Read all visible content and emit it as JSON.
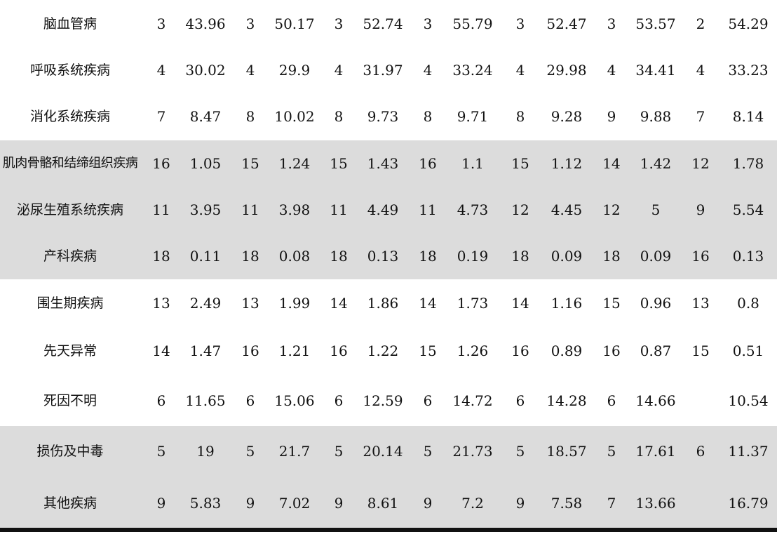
{
  "table": {
    "rows": [
      {
        "name": "脑血管病",
        "shaded": false,
        "cells": [
          "3",
          "43.96",
          "3",
          "50.17",
          "3",
          "52.74",
          "3",
          "55.79",
          "3",
          "52.47",
          "3",
          "53.57",
          "2",
          "54.29"
        ]
      },
      {
        "name": "呼吸系统疾病",
        "shaded": false,
        "cells": [
          "4",
          "30.02",
          "4",
          "29.9",
          "4",
          "31.97",
          "4",
          "33.24",
          "4",
          "29.98",
          "4",
          "34.41",
          "4",
          "33.23"
        ]
      },
      {
        "name": "消化系统疾病",
        "shaded": false,
        "cells": [
          "7",
          "8.47",
          "8",
          "10.02",
          "8",
          "9.73",
          "8",
          "9.71",
          "8",
          "9.28",
          "9",
          "9.88",
          "7",
          "8.14"
        ]
      },
      {
        "name": "肌肉骨骼和结缔组织疾病",
        "shaded": true,
        "cells": [
          "16",
          "1.05",
          "15",
          "1.24",
          "15",
          "1.43",
          "16",
          "1.1",
          "15",
          "1.12",
          "14",
          "1.42",
          "12",
          "1.78"
        ]
      },
      {
        "name": "泌尿生殖系统疾病",
        "shaded": true,
        "cells": [
          "11",
          "3.95",
          "11",
          "3.98",
          "11",
          "4.49",
          "11",
          "4.73",
          "12",
          "4.45",
          "12",
          "5",
          "9",
          "5.54"
        ]
      },
      {
        "name": "产科疾病",
        "shaded": true,
        "cells": [
          "18",
          "0.11",
          "18",
          "0.08",
          "18",
          "0.13",
          "18",
          "0.19",
          "18",
          "0.09",
          "18",
          "0.09",
          "16",
          "0.13"
        ]
      },
      {
        "name": "围生期疾病",
        "shaded": false,
        "cells": [
          "13",
          "2.49",
          "13",
          "1.99",
          "14",
          "1.86",
          "14",
          "1.73",
          "14",
          "1.16",
          "15",
          "0.96",
          "13",
          "0.8"
        ]
      },
      {
        "name": "先天异常",
        "shaded": false,
        "cells": [
          "14",
          "1.47",
          "16",
          "1.21",
          "16",
          "1.22",
          "15",
          "1.26",
          "16",
          "0.89",
          "16",
          "0.87",
          "15",
          "0.51"
        ]
      },
      {
        "name": "死因不明",
        "shaded": false,
        "cells": [
          "6",
          "11.65",
          "6",
          "15.06",
          "6",
          "12.59",
          "6",
          "14.72",
          "6",
          "14.28",
          "6",
          "14.66",
          "",
          "10.54"
        ]
      },
      {
        "name": "损伤及中毒",
        "shaded": true,
        "cells": [
          "5",
          "19",
          "5",
          "21.7",
          "5",
          "20.14",
          "5",
          "21.73",
          "5",
          "18.57",
          "5",
          "17.61",
          "6",
          "11.37"
        ]
      },
      {
        "name": "其他疾病",
        "shaded": true,
        "cells": [
          "9",
          "5.83",
          "9",
          "7.02",
          "9",
          "8.61",
          "9",
          "7.2",
          "9",
          "7.58",
          "7",
          "13.66",
          "",
          "16.79"
        ]
      }
    ]
  }
}
